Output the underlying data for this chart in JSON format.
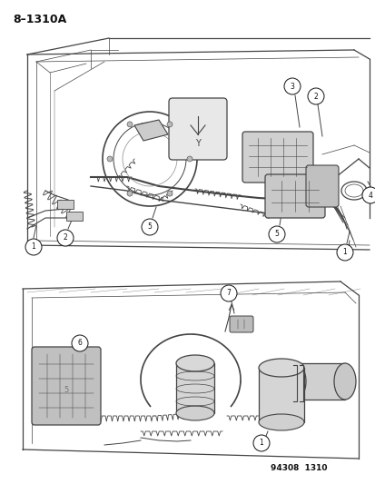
{
  "title": "8–1310A",
  "footer": "94308  1310",
  "bg_color": "#f5f5f0",
  "line_color": "#444444",
  "light_line": "#888888",
  "title_fontsize": 9,
  "footer_fontsize": 6.5,
  "fig_width": 4.14,
  "fig_height": 5.33,
  "dpi": 100
}
